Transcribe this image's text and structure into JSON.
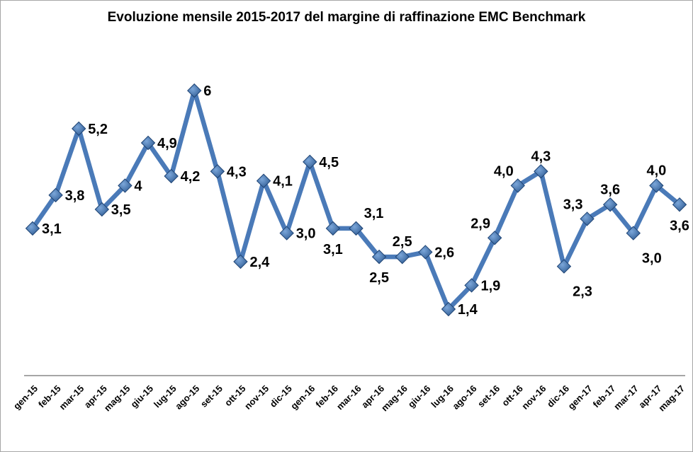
{
  "chart_data": {
    "type": "line",
    "title": "Evoluzione mensile 2015-2017 del margine di raffinazione EMC Benchmark",
    "categories": [
      "gen-15",
      "feb-15",
      "mar-15",
      "apr-15",
      "mag-15",
      "giu-15",
      "lug-15",
      "ago-15",
      "set-15",
      "ott-15",
      "nov-15",
      "dic-15",
      "gen-16",
      "feb-16",
      "mar-16",
      "apr-16",
      "mag-16",
      "giu-16",
      "lug-16",
      "ago-16",
      "set-16",
      "ott-16",
      "nov-16",
      "dic-16",
      "gen-17",
      "feb-17",
      "mar-17",
      "apr-17",
      "mag-17"
    ],
    "values": [
      3.1,
      3.8,
      5.2,
      3.5,
      4,
      4.9,
      4.2,
      6,
      4.3,
      2.4,
      4.1,
      3.0,
      4.5,
      3.1,
      3.1,
      2.5,
      2.5,
      2.6,
      1.4,
      1.9,
      2.9,
      4.0,
      4.3,
      2.3,
      3.3,
      3.6,
      3.0,
      4.0,
      3.6
    ],
    "value_labels": [
      "3,1",
      "3,8",
      "5,2",
      "3,5",
      "4",
      "4,9",
      "4,2",
      "6",
      "4,3",
      "2,4",
      "4,1",
      "3,0",
      "4,5",
      "3,1",
      "3,1",
      "2,5",
      "2,5",
      "2,6",
      "1,4",
      "1,9",
      "2,9",
      "4,0",
      "4,3",
      "2,3",
      "3,3",
      "3,6",
      "3,0",
      "4,0",
      "3,6"
    ],
    "label_positions": [
      "right",
      "right",
      "right",
      "right",
      "right",
      "right",
      "right",
      "right",
      "right",
      "right",
      "right",
      "right",
      "right",
      "below",
      "above-right",
      "below",
      "above",
      "right",
      "right",
      "right",
      "above-left",
      "above-left",
      "above",
      "below-right",
      "above-left",
      "above",
      "below-right",
      "above",
      "below"
    ],
    "xlabel": "",
    "ylabel": "",
    "ylim": [
      0,
      7
    ],
    "grid": false,
    "legend": "none",
    "marker": "diamond",
    "colors": {
      "line": "#4a7ab8",
      "marker_light": "#7ba6d9",
      "marker_dark": "#2b5890",
      "marker_edge": "#1f4474",
      "axis_line": "#898989",
      "label_text": "#000000",
      "title_text": "#000000",
      "frame_border": "#a6a6a6",
      "background": "#ffffff"
    }
  }
}
